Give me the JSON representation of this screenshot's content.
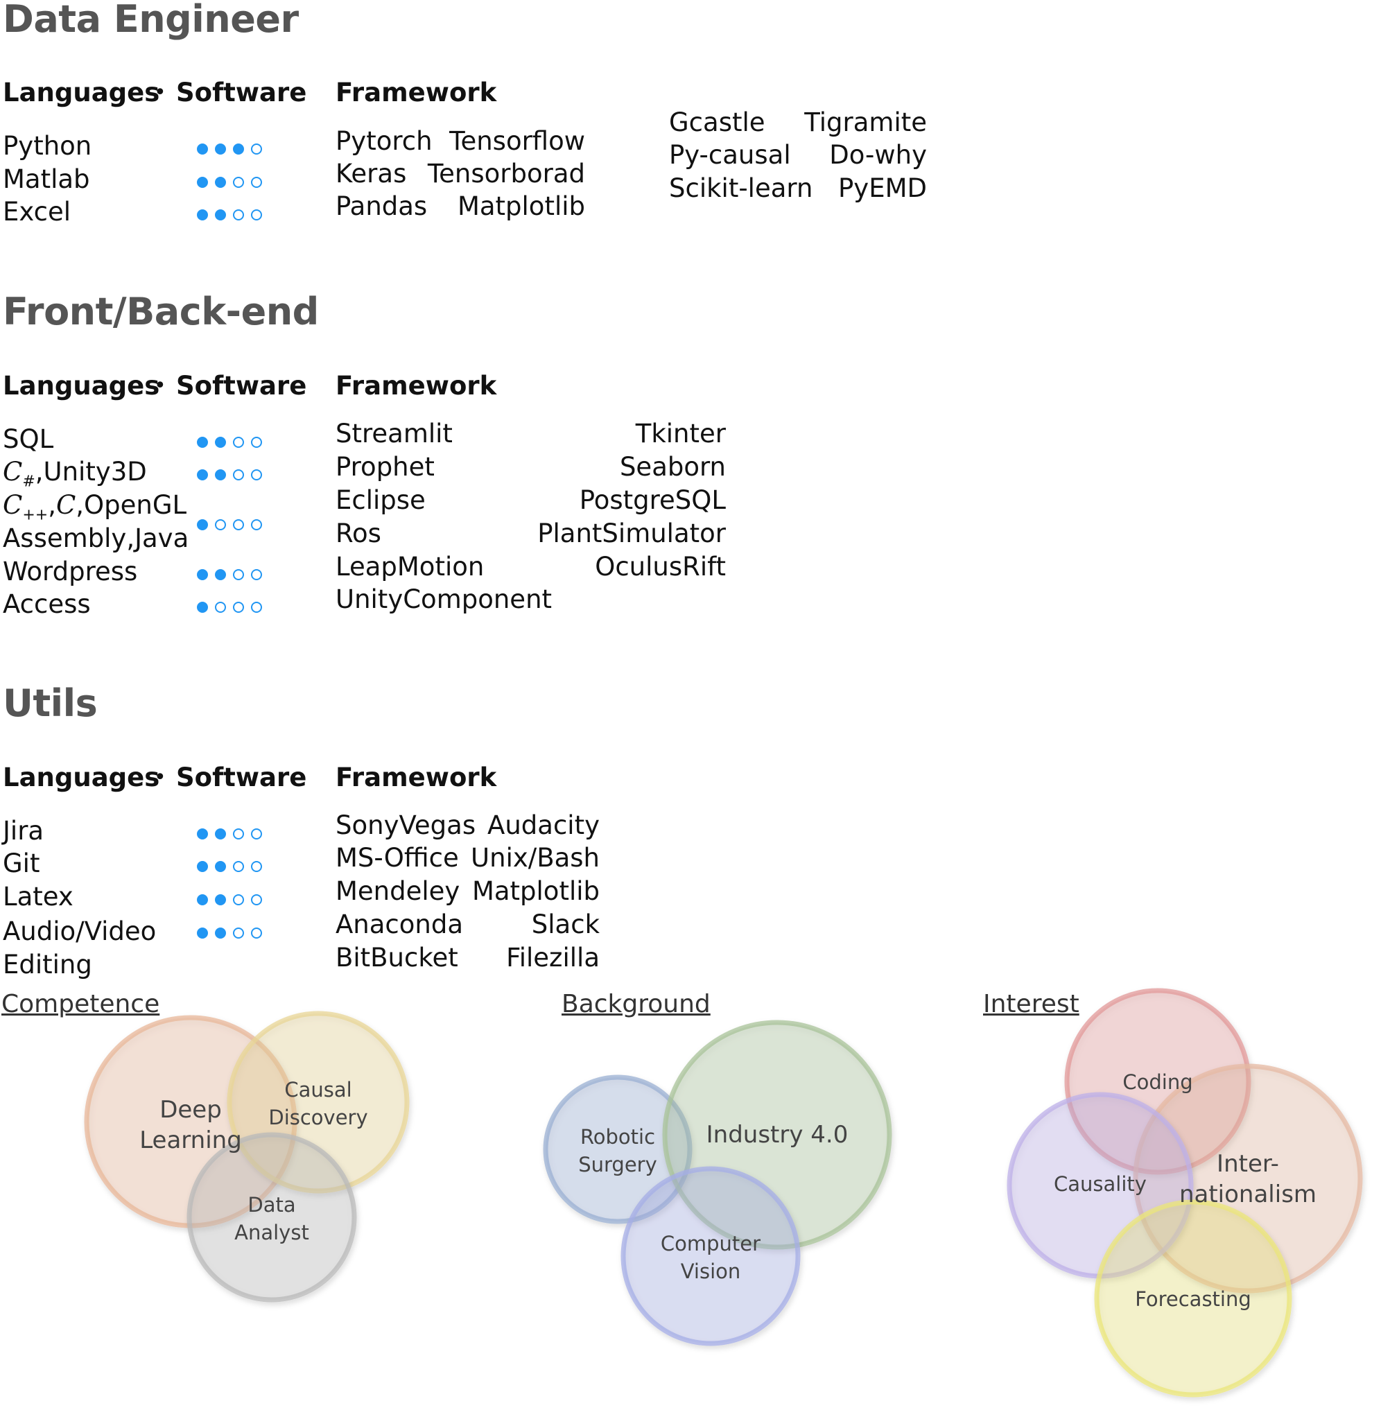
{
  "headers": {
    "languages": "Languages",
    "bullet": "•",
    "software": "Software",
    "framework": "Framework"
  },
  "sections": [
    {
      "title": "Data Engineer",
      "languages": [
        {
          "name": "Python",
          "level": 3
        },
        {
          "name": "Matlab",
          "level": 2
        },
        {
          "name": "Excel",
          "level": 2
        }
      ],
      "frameworks_left": [
        "Pytorch",
        "Keras",
        "Pandas"
      ],
      "frameworks_right": [
        "Tensorflow",
        "Tensorborad",
        "Matplotlib"
      ],
      "frameworks_extra_left": [
        "Gcastle",
        "Py-causal",
        "Scikit-learn"
      ],
      "frameworks_extra_right": [
        "Tigramite",
        "Do-why",
        "PyEMD"
      ]
    },
    {
      "title": "Front/Back-end",
      "languages": [
        {
          "name": "SQL",
          "level": 2
        },
        {
          "name": "C#,Unity3D",
          "level": 2
        },
        {
          "name": "C++,C,OpenGL Assembly,Java",
          "level": 1
        },
        {
          "name": "Wordpress",
          "level": 2
        },
        {
          "name": "Access",
          "level": 1
        }
      ],
      "frameworks_left": [
        "Streamlit",
        "Prophet",
        "Eclipse",
        "Ros",
        "LeapMotion",
        "UnityComponent"
      ],
      "frameworks_right": [
        "Tkinter",
        "Seaborn",
        "PostgreSQL",
        "PlantSimulator",
        "OculusRift",
        ""
      ]
    },
    {
      "title": "Utils",
      "languages": [
        {
          "name": "Jira",
          "level": 2
        },
        {
          "name": "Git",
          "level": 2
        },
        {
          "name": "Latex",
          "level": 2
        },
        {
          "name": "Audio/Video Editing",
          "level": 2
        }
      ],
      "frameworks_left": [
        "SonyVegas",
        "MS-Office",
        "Mendeley",
        "Anaconda",
        "BitBucket"
      ],
      "frameworks_right": [
        "Audacity",
        "Unix/Bash",
        "Matplotlib",
        "Slack",
        "Filezilla"
      ]
    }
  ],
  "venn": {
    "competence": {
      "label": "Competence",
      "circles": [
        {
          "text": "Deep Learning",
          "color": "#e8b79a"
        },
        {
          "text": "Causal Discovery",
          "color": "#e8d596"
        },
        {
          "text": "Data Analyst",
          "color": "#b9b9b9"
        }
      ]
    },
    "background": {
      "label": "Background",
      "circles": [
        {
          "text": "Robotic Surgery",
          "color": "#9bb0d3"
        },
        {
          "text": "Industry 4.0",
          "color": "#a9c39a"
        },
        {
          "text": "Computer Vision",
          "color": "#a6aee5"
        }
      ]
    },
    "interest": {
      "label": "Interest",
      "circles": [
        {
          "text": "Coding",
          "color": "#e19a9a"
        },
        {
          "text": "Inter- nationalism",
          "color": "#e6b9a3"
        },
        {
          "text": "Causality",
          "color": "#bdb0e8"
        },
        {
          "text": "Forecasting",
          "color": "#ebe67a"
        }
      ]
    }
  }
}
